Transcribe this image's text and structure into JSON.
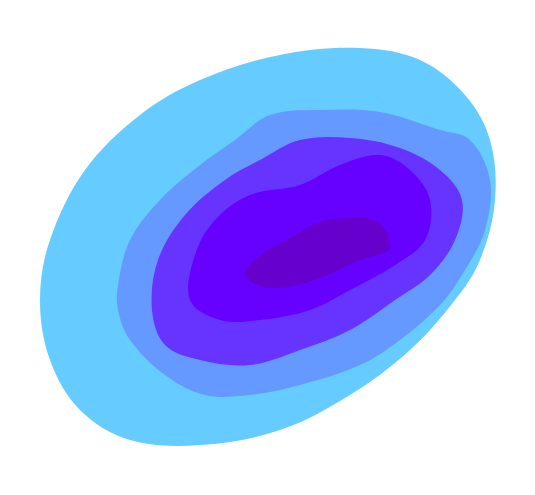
{
  "chart_data": {
    "type": "contour",
    "xlim": [
      0,
      535
    ],
    "ylim": [
      0,
      495
    ],
    "tick_labels": false,
    "grid": false,
    "levels": [
      {
        "color": "#66ccff",
        "polygon": [
          [
            40,
            195
          ],
          [
            50,
            255
          ],
          [
            85,
            325
          ],
          [
            140,
            380
          ],
          [
            200,
            415
          ],
          [
            280,
            440
          ],
          [
            360,
            447
          ],
          [
            420,
            435
          ],
          [
            465,
            400
          ],
          [
            490,
            355
          ],
          [
            495,
            295
          ],
          [
            480,
            235
          ],
          [
            455,
            195
          ],
          [
            410,
            145
          ],
          [
            350,
            100
          ],
          [
            280,
            65
          ],
          [
            200,
            50
          ],
          [
            130,
            55
          ],
          [
            80,
            85
          ],
          [
            50,
            135
          ]
        ]
      },
      {
        "color": "#6699ff",
        "polygon": [
          [
            118,
            210
          ],
          [
            130,
            255
          ],
          [
            160,
            295
          ],
          [
            200,
            330
          ],
          [
            235,
            355
          ],
          [
            270,
            380
          ],
          [
            320,
            385
          ],
          [
            380,
            383
          ],
          [
            440,
            365
          ],
          [
            470,
            355
          ],
          [
            490,
            315
          ],
          [
            485,
            265
          ],
          [
            465,
            225
          ],
          [
            440,
            190
          ],
          [
            400,
            155
          ],
          [
            360,
            130
          ],
          [
            300,
            110
          ],
          [
            250,
            100
          ],
          [
            205,
            100
          ],
          [
            165,
            120
          ],
          [
            130,
            155
          ],
          [
            118,
            185
          ]
        ]
      },
      {
        "color": "#6633ff",
        "polygon": [
          [
            152,
            185
          ],
          [
            158,
            235
          ],
          [
            185,
            280
          ],
          [
            225,
            315
          ],
          [
            260,
            335
          ],
          [
            300,
            355
          ],
          [
            350,
            357
          ],
          [
            400,
            347
          ],
          [
            440,
            325
          ],
          [
            462,
            295
          ],
          [
            455,
            255
          ],
          [
            430,
            220
          ],
          [
            395,
            195
          ],
          [
            350,
            165
          ],
          [
            300,
            145
          ],
          [
            250,
            130
          ],
          [
            200,
            135
          ],
          [
            165,
            150
          ]
        ]
      },
      {
        "color": "#6600ff",
        "polygon": [
          [
            190,
            195
          ],
          [
            195,
            240
          ],
          [
            215,
            275
          ],
          [
            250,
            300
          ],
          [
            300,
            310
          ],
          [
            340,
            330
          ],
          [
            380,
            340
          ],
          [
            410,
            325
          ],
          [
            430,
            295
          ],
          [
            425,
            255
          ],
          [
            395,
            230
          ],
          [
            350,
            205
          ],
          [
            310,
            185
          ],
          [
            260,
            175
          ],
          [
            220,
            175
          ]
        ]
      },
      {
        "color": "#6600cc",
        "polygon": [
          [
            245,
            223
          ],
          [
            265,
            243
          ],
          [
            290,
            257
          ],
          [
            320,
            273
          ],
          [
            350,
            277
          ],
          [
            378,
            273
          ],
          [
            390,
            247
          ],
          [
            360,
            235
          ],
          [
            320,
            217
          ],
          [
            280,
            207
          ],
          [
            255,
            211
          ]
        ]
      }
    ]
  }
}
